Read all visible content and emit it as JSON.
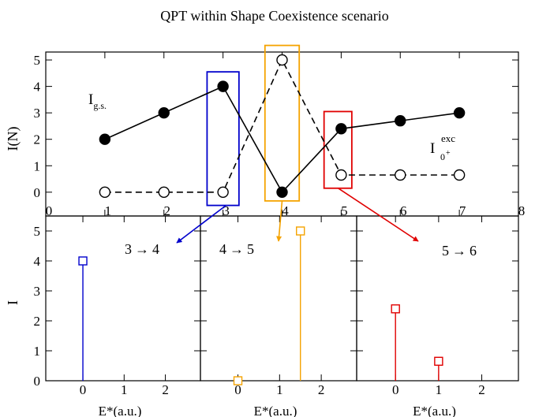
{
  "title": "QPT within Shape Coexistence scenario",
  "colors": {
    "blue": "#0000cc",
    "orange": "#f5a300",
    "red": "#e00000",
    "black": "#000000"
  },
  "chart_data": [
    {
      "type": "line",
      "ylabel": "I(N)",
      "xlim": [
        0,
        8
      ],
      "ylim": [
        -0.9,
        5.3
      ],
      "x_ticks": [
        "0",
        "1",
        "2",
        "3",
        "4",
        "5",
        "6",
        "7",
        "8"
      ],
      "y_ticks": [
        "0",
        "1",
        "2",
        "3",
        "4",
        "5"
      ],
      "series": [
        {
          "key": "gs",
          "label": "I",
          "label_sub": "g.s.",
          "style": "solid-filled-circles",
          "x": [
            1,
            2,
            3,
            4,
            5,
            6,
            7
          ],
          "y": [
            2,
            3,
            4,
            0,
            2.4,
            2.7,
            3
          ]
        },
        {
          "key": "exc",
          "label": "I",
          "label_sub": "0",
          "label_subsup": "+",
          "label_sup": "exc",
          "style": "dashed-open-circles",
          "x": [
            1,
            2,
            3,
            4,
            5,
            6,
            7
          ],
          "y": [
            0,
            0,
            0,
            5,
            0.65,
            0.65,
            0.65
          ]
        }
      ],
      "highlight_boxes": [
        {
          "color": "blue",
          "x": [
            2.73,
            3.27
          ],
          "y": [
            -0.5,
            4.55
          ]
        },
        {
          "color": "orange",
          "x": [
            3.71,
            4.29
          ],
          "y": [
            -0.33,
            5.55
          ]
        },
        {
          "color": "red",
          "x": [
            4.71,
            5.18
          ],
          "y": [
            0.15,
            3.05
          ]
        }
      ]
    },
    {
      "type": "stem",
      "panels": [
        {
          "label_from": "3",
          "label_to": "4",
          "color": "blue",
          "x": [
            0
          ],
          "y": [
            4
          ]
        },
        {
          "label_from": "4",
          "label_to": "5",
          "color": "orange",
          "x": [
            0,
            1.5
          ],
          "y": [
            0,
            5
          ]
        },
        {
          "label_from": "5",
          "label_to": "6",
          "color": "red",
          "x": [
            0,
            1
          ],
          "y": [
            2.4,
            0.65
          ]
        }
      ],
      "xlabel": "E*(a.u.)",
      "ylabel": "I",
      "xlim": [
        -0.9,
        2.85
      ],
      "ylim": [
        0,
        5.5
      ],
      "x_ticks": [
        "0",
        "1",
        "2"
      ],
      "y_ticks": [
        "0",
        "1",
        "2",
        "3",
        "4",
        "5"
      ],
      "arrow": "→"
    }
  ]
}
